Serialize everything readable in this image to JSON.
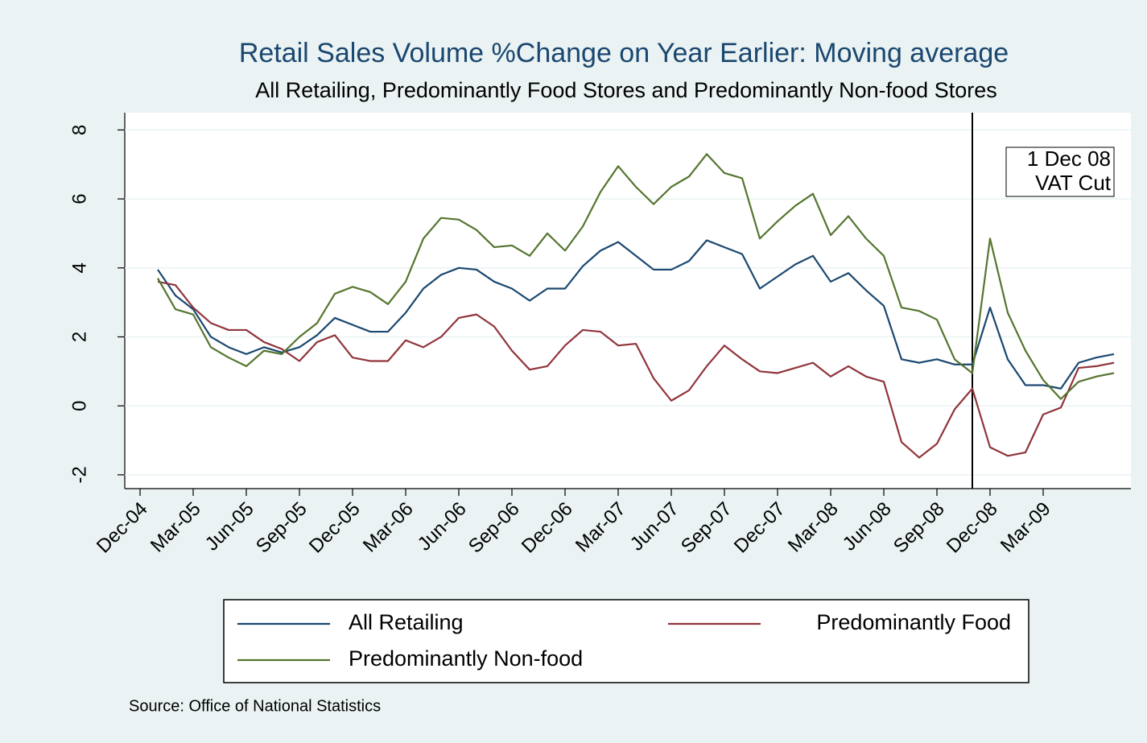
{
  "chart_data": {
    "type": "line",
    "title": "Retail Sales Volume %Change on Year Earlier: Moving average",
    "subtitle": "All Retailing, Predominantly Food Stores and Predominantly Non-food Stores",
    "source": "Source: Office of National Statistics",
    "categories": [
      "Dec-04",
      null,
      null,
      "Mar-05",
      null,
      null,
      "Jun-05",
      null,
      null,
      "Sep-05",
      null,
      null,
      "Dec-05",
      null,
      null,
      "Mar-06",
      null,
      null,
      "Jun-06",
      null,
      null,
      "Sep-06",
      null,
      null,
      "Dec-06",
      null,
      null,
      "Mar-07",
      null,
      null,
      "Jun-07",
      null,
      null,
      "Sep-07",
      null,
      null,
      "Dec-07",
      null,
      null,
      "Mar-08",
      null,
      null,
      "Jun-08",
      null,
      null,
      "Sep-08",
      null,
      null,
      "Dec-08",
      null,
      null,
      "Mar-09",
      null,
      null,
      null,
      null
    ],
    "series": [
      {
        "name": "All Retailing",
        "color": "#1a476f",
        "values": [
          null,
          3.95,
          3.2,
          2.8,
          2.0,
          1.7,
          1.5,
          1.7,
          1.55,
          1.7,
          2.05,
          2.55,
          2.35,
          2.15,
          2.15,
          2.7,
          3.4,
          3.8,
          4.0,
          3.95,
          3.6,
          3.4,
          3.05,
          3.4,
          3.4,
          4.05,
          4.5,
          4.75,
          4.35,
          3.95,
          3.95,
          4.2,
          4.8,
          4.6,
          4.4,
          3.4,
          3.75,
          4.1,
          4.35,
          3.6,
          3.85,
          3.35,
          2.9,
          1.35,
          1.25,
          1.35,
          1.2,
          1.2,
          2.85,
          1.35,
          0.6,
          0.6,
          0.5,
          1.25,
          1.4,
          1.5
        ]
      },
      {
        "name": "Predominantly Food",
        "color": "#90353b",
        "values": [
          null,
          3.6,
          3.5,
          2.85,
          2.4,
          2.2,
          2.2,
          1.85,
          1.65,
          1.3,
          1.85,
          2.05,
          1.4,
          1.3,
          1.3,
          1.9,
          1.7,
          2.0,
          2.55,
          2.65,
          2.3,
          1.6,
          1.05,
          1.15,
          1.75,
          2.2,
          2.15,
          1.75,
          1.8,
          0.8,
          0.15,
          0.45,
          1.15,
          1.75,
          1.35,
          1.0,
          0.95,
          1.1,
          1.25,
          0.85,
          1.15,
          0.85,
          0.7,
          -1.05,
          -1.5,
          -1.1,
          -0.1,
          0.5,
          -1.2,
          -1.45,
          -1.35,
          -0.25,
          -0.05,
          1.1,
          1.15,
          1.25
        ]
      },
      {
        "name": "Predominantly Non-food",
        "color": "#55752f",
        "values": [
          null,
          3.7,
          2.8,
          2.65,
          1.7,
          1.4,
          1.15,
          1.6,
          1.5,
          2.0,
          2.4,
          3.25,
          3.45,
          3.3,
          2.95,
          3.6,
          4.85,
          5.45,
          5.4,
          5.1,
          4.6,
          4.65,
          4.35,
          5.0,
          4.5,
          5.2,
          6.2,
          6.95,
          6.35,
          5.85,
          6.35,
          6.65,
          7.3,
          6.75,
          6.6,
          4.85,
          5.35,
          5.8,
          6.15,
          4.95,
          5.5,
          4.85,
          4.35,
          2.85,
          2.75,
          2.5,
          1.35,
          0.95,
          4.85,
          2.7,
          1.6,
          0.75,
          0.2,
          0.7,
          0.85,
          0.95
        ]
      }
    ],
    "annotation": {
      "category_index": 47,
      "lines": [
        "1 Dec 08",
        "VAT Cut"
      ]
    },
    "ylim": [
      -2.4,
      8.5
    ],
    "yticks": [
      -2,
      0,
      2,
      4,
      6,
      8
    ],
    "grid": true
  }
}
